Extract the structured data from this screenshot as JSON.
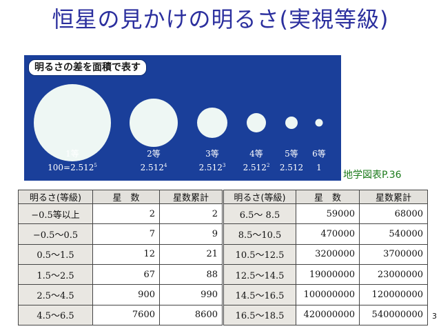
{
  "title": "恒星の見かけの明るさ(実視等級)",
  "panel": {
    "label": "明るさの差を面積で表す",
    "magnitudes": [
      "1等",
      "2等",
      "3等",
      "4等",
      "5等",
      "6等"
    ],
    "ratios": [
      {
        "base": "100=2.512",
        "exp": "5"
      },
      {
        "base": "2.512",
        "exp": "4"
      },
      {
        "base": "2.512",
        "exp": "3"
      },
      {
        "base": "2.512",
        "exp": "2"
      },
      {
        "base": "2.512",
        "exp": ""
      },
      {
        "base": "1",
        "exp": ""
      }
    ]
  },
  "source": "地学図表P.36",
  "table": {
    "headers": [
      "明るさ(等級)",
      "星　数",
      "星数累計",
      "明るさ(等級)",
      "星　数",
      "星数累計"
    ],
    "rows": [
      [
        "−0.5等以上",
        "2",
        "2",
        "6.5〜 8.5",
        "59000",
        "68000"
      ],
      [
        "−0.5〜0.5",
        "7",
        "9",
        "8.5〜10.5",
        "470000",
        "540000"
      ],
      [
        "0.5〜1.5",
        "12",
        "21",
        "10.5〜12.5",
        "3200000",
        "3700000"
      ],
      [
        "1.5〜2.5",
        "67",
        "88",
        "12.5〜14.5",
        "19000000",
        "23000000"
      ],
      [
        "2.5〜4.5",
        "900",
        "990",
        "14.5〜16.5",
        "100000000",
        "120000000"
      ],
      [
        "4.5〜6.5",
        "7600",
        "8600",
        "16.5〜18.5",
        "420000000",
        "540000000"
      ]
    ]
  },
  "page_number": "3"
}
